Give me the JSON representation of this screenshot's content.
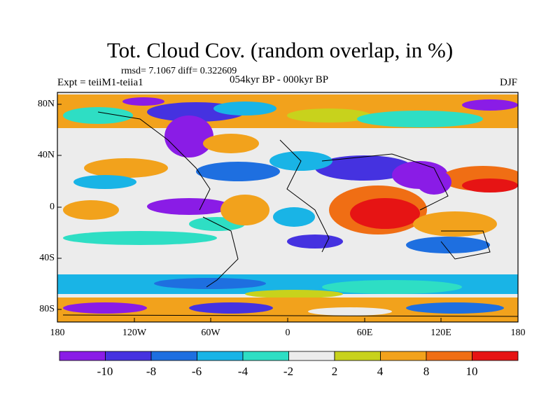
{
  "title": "Tot. Cloud Cov. (random overlap, in %)",
  "stats": "rmsd= 7.1067 diff= 0.322609",
  "experiment": "Expt = teiiM1-teiia1",
  "period": "054kyr BP - 000kyr BP",
  "season": "DJF",
  "lat_ticks": [
    "80N",
    "40N",
    "0",
    "40S",
    "80S"
  ],
  "lon_ticks": [
    "180",
    "120W",
    "60W",
    "0",
    "60E",
    "120E",
    "180"
  ],
  "colorbar": {
    "labels": [
      "-10",
      "-8",
      "-6",
      "-4",
      "-2",
      "2",
      "4",
      "8",
      "10"
    ],
    "colors": [
      "#8a1ce6",
      "#4532e0",
      "#1e6fe0",
      "#19b4e6",
      "#2edec4",
      "#ececec",
      "#c8d21c",
      "#f2a21c",
      "#f06e14",
      "#e61414"
    ]
  }
}
